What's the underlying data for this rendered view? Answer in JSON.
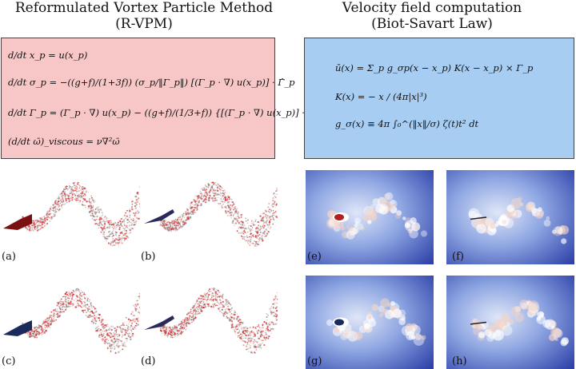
{
  "left_heading": {
    "line1": "Reformulated Vortex Particle Method",
    "line2": "(R-VPM)"
  },
  "right_heading": {
    "line1": "Velocity field computation",
    "line2": "(Biot-Savart Law)"
  },
  "left_equations": [
    "d/dt x_p = u(x_p)",
    "d/dt σ_p = −((g+f)/(1+3f)) (σ_p/‖Γ_p‖) [(Γ_p · ∇) u(x_p)] · Γ̂_p",
    "d/dt Γ_p = (Γ_p · ∇) u(x_p) − ((g+f)/(1/3+f)) {[(Γ_p · ∇) u(x_p)] · Γ̂_p} Γ̂_p",
    "(d/dt ω̄)_viscous = ν∇²ω̄"
  ],
  "right_equations": [
    "ū(x) = Σ_p g_σp(x − x_p) K(x − x_p) × Γ_p",
    "K(x) = − x / (4π|x|³)",
    "g_σ(x) ≡ 4π ∫₀^(‖x‖/σ) ζ(t)t² dt"
  ],
  "panel_labels": {
    "a": "(a)",
    "b": "(b)",
    "c": "(c)",
    "d": "(d)",
    "e": "(e)",
    "f": "(f)",
    "g": "(g)",
    "h": "(h)"
  },
  "colors": {
    "vpm_box": "#f7c6c6",
    "biot_box": "#a8cdf3",
    "particle": "#d02a2a",
    "field_bg": "#2c3fa8",
    "field_core": "#ffffff"
  }
}
